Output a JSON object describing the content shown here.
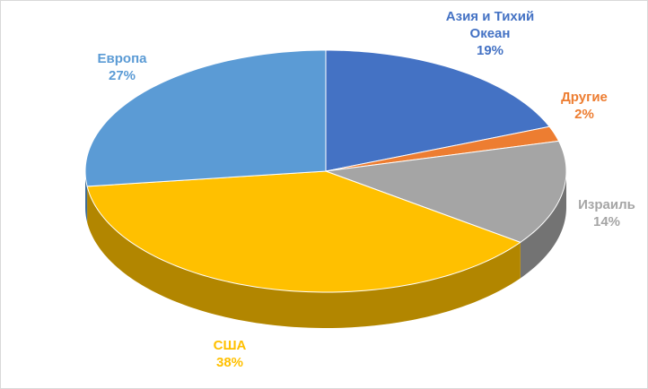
{
  "chart_data": {
    "type": "pie",
    "categories": [
      "Азия и Тихий Океан",
      "Другие",
      "Израиль",
      "США",
      "Европа"
    ],
    "values": [
      19,
      2,
      14,
      38,
      27
    ],
    "value_labels": [
      "19%",
      "2%",
      "14%",
      "38%",
      "27%"
    ],
    "colors": [
      "#4472c4",
      "#ed7d31",
      "#a5a5a5",
      "#ffc000",
      "#5b9bd5"
    ]
  }
}
